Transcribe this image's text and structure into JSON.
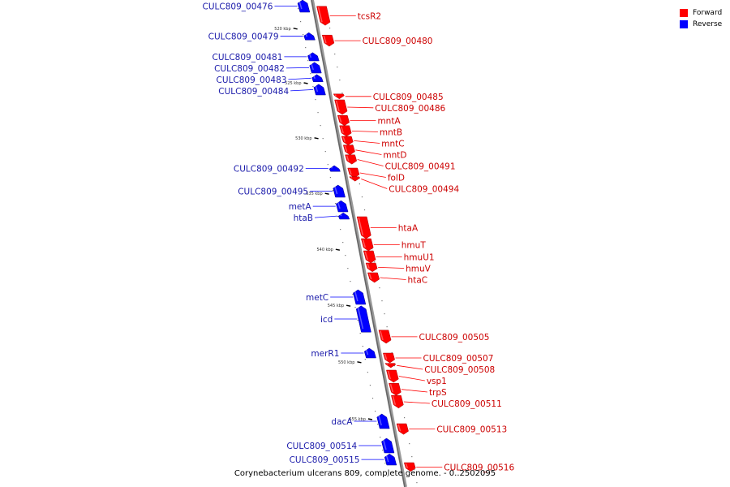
{
  "legend": {
    "items": [
      {
        "label": "Forward",
        "color": "#ff0000"
      },
      {
        "label": "Reverse",
        "color": "#0000ff"
      }
    ]
  },
  "caption": "Corynebacterium ulcerans 809, complete genome. - 0..2502095",
  "axis": {
    "ticks": [
      {
        "label": "520 kbp",
        "at": 0.058
      },
      {
        "label": "525 kbp",
        "at": 0.17
      },
      {
        "label": "530 kbp",
        "at": 0.283
      },
      {
        "label": "535 kbp",
        "at": 0.397
      },
      {
        "label": "540 kbp",
        "at": 0.512
      },
      {
        "label": "545 kbp",
        "at": 0.627
      },
      {
        "label": "550 kbp",
        "at": 0.743
      },
      {
        "label": "555 kbp",
        "at": 0.86
      }
    ]
  },
  "genes": [
    {
      "name": "CULC809_00476",
      "strand": "reverse",
      "start": 0.0,
      "end": 0.025
    },
    {
      "name": "tcsR2",
      "strand": "forward",
      "start": 0.013,
      "end": 0.052
    },
    {
      "name": "CULC809_00479",
      "strand": "reverse",
      "start": 0.067,
      "end": 0.082
    },
    {
      "name": "CULC809_00480",
      "strand": "forward",
      "start": 0.072,
      "end": 0.095
    },
    {
      "name": "CULC809_00481",
      "strand": "reverse",
      "start": 0.108,
      "end": 0.125
    },
    {
      "name": "CULC809_00482",
      "strand": "reverse",
      "start": 0.128,
      "end": 0.15
    },
    {
      "name": "CULC809_00483",
      "strand": "reverse",
      "start": 0.153,
      "end": 0.168
    },
    {
      "name": "CULC809_00484",
      "strand": "reverse",
      "start": 0.173,
      "end": 0.195
    },
    {
      "name": "CULC809_00485",
      "strand": "forward",
      "start": 0.193,
      "end": 0.203
    },
    {
      "name": "CULC809_00486",
      "strand": "forward",
      "start": 0.205,
      "end": 0.235
    },
    {
      "name": "mntA",
      "strand": "forward",
      "start": 0.237,
      "end": 0.258
    },
    {
      "name": "mntB",
      "strand": "forward",
      "start": 0.258,
      "end": 0.28
    },
    {
      "name": "mntC",
      "strand": "forward",
      "start": 0.28,
      "end": 0.298
    },
    {
      "name": "mntD",
      "strand": "forward",
      "start": 0.298,
      "end": 0.318
    },
    {
      "name": "CULC809_00491",
      "strand": "forward",
      "start": 0.318,
      "end": 0.337
    },
    {
      "name": "CULC809_00492",
      "strand": "reverse",
      "start": 0.34,
      "end": 0.352
    },
    {
      "name": "folD",
      "strand": "forward",
      "start": 0.345,
      "end": 0.365
    },
    {
      "name": "CULC809_00494",
      "strand": "forward",
      "start": 0.363,
      "end": 0.372
    },
    {
      "name": "CULC809_00495",
      "strand": "reverse",
      "start": 0.38,
      "end": 0.405
    },
    {
      "name": "metA",
      "strand": "reverse",
      "start": 0.412,
      "end": 0.435
    },
    {
      "name": "htaB",
      "strand": "reverse",
      "start": 0.437,
      "end": 0.45
    },
    {
      "name": "htaA",
      "strand": "forward",
      "start": 0.445,
      "end": 0.49
    },
    {
      "name": "hmuT",
      "strand": "forward",
      "start": 0.49,
      "end": 0.515
    },
    {
      "name": "hmuU1",
      "strand": "forward",
      "start": 0.515,
      "end": 0.54
    },
    {
      "name": "hmuV",
      "strand": "forward",
      "start": 0.54,
      "end": 0.558
    },
    {
      "name": "htaC",
      "strand": "forward",
      "start": 0.56,
      "end": 0.58
    },
    {
      "name": "metC",
      "strand": "reverse",
      "start": 0.595,
      "end": 0.625
    },
    {
      "name": "icd",
      "strand": "reverse",
      "start": 0.628,
      "end": 0.682
    },
    {
      "name": "CULC809_00505",
      "strand": "forward",
      "start": 0.678,
      "end": 0.705
    },
    {
      "name": "merR1",
      "strand": "reverse",
      "start": 0.715,
      "end": 0.735
    },
    {
      "name": "CULC809_00507",
      "strand": "forward",
      "start": 0.725,
      "end": 0.745
    },
    {
      "name": "CULC809_00508",
      "strand": "forward",
      "start": 0.746,
      "end": 0.755
    },
    {
      "name": "vsp1",
      "strand": "forward",
      "start": 0.76,
      "end": 0.785
    },
    {
      "name": "trpS",
      "strand": "forward",
      "start": 0.787,
      "end": 0.812
    },
    {
      "name": "CULC809_00511",
      "strand": "forward",
      "start": 0.812,
      "end": 0.838
    },
    {
      "name": "dacA",
      "strand": "reverse",
      "start": 0.85,
      "end": 0.88
    },
    {
      "name": "CULC809_00513",
      "strand": "forward",
      "start": 0.87,
      "end": 0.892
    },
    {
      "name": "CULC809_00514",
      "strand": "reverse",
      "start": 0.9,
      "end": 0.93
    },
    {
      "name": "CULC809_00515",
      "strand": "reverse",
      "start": 0.932,
      "end": 0.955
    },
    {
      "name": "CULC809_00516",
      "strand": "forward",
      "start": 0.95,
      "end": 0.968
    }
  ]
}
